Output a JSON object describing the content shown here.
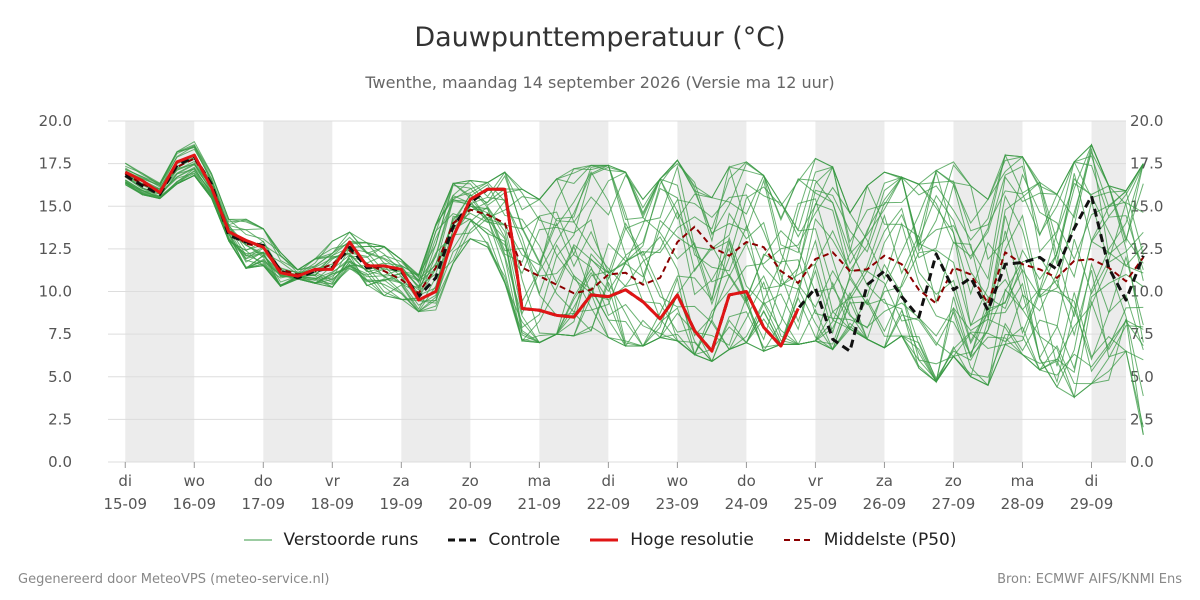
{
  "title": "Dauwpunttemperatuur (°C)",
  "subtitle": "Twenthe, maandag 14 september 2026 (Versie ma 12 uur)",
  "footer": {
    "left": "Gegenereerd door MeteoVPS (meteo-service.nl)",
    "right": "Bron: ECMWF AIFS/KNMI Ens"
  },
  "legend": {
    "members": "Verstoorde runs",
    "control": "Controle",
    "hires": "Hoge resolutie",
    "median": "Middelste (P50)"
  },
  "colors": {
    "members": "#3a9a44",
    "control": "#111111",
    "hires": "#e01515",
    "median": "#8b0000",
    "weekend_band": "#ececec",
    "grid": "#dddddd"
  },
  "chart_data": {
    "type": "line",
    "ylim": [
      0,
      20
    ],
    "yticks": [
      "0.0",
      "2.5",
      "5.0",
      "7.5",
      "10.0",
      "12.5",
      "15.0",
      "17.5",
      "20.0"
    ],
    "x_start_day": -0.25,
    "x_end_day": 14.5,
    "xtick_days": [
      "di",
      "wo",
      "do",
      "vr",
      "za",
      "zo",
      "ma",
      "di",
      "wo",
      "do",
      "vr",
      "za",
      "zo",
      "ma",
      "di"
    ],
    "xtick_dates": [
      "15-09",
      "16-09",
      "17-09",
      "18-09",
      "19-09",
      "20-09",
      "21-09",
      "22-09",
      "23-09",
      "24-09",
      "25-09",
      "26-09",
      "27-09",
      "28-09",
      "29-09"
    ],
    "shaded_days": [
      0,
      2,
      4,
      6,
      8,
      10,
      12,
      14
    ],
    "step_days": 0.25,
    "series": [
      {
        "name": "Controle",
        "role": "control",
        "values": [
          16.8,
          16.2,
          15.7,
          17.4,
          17.9,
          16.3,
          13.3,
          12.9,
          12.7,
          11.2,
          10.8,
          11.2,
          11.4,
          12.6,
          11.4,
          11.5,
          11.2,
          9.7,
          10.8,
          13.8,
          15.2,
          16.0,
          16.0,
          9.0,
          8.9,
          8.6,
          8.5,
          9.8,
          9.7,
          10.1,
          9.4,
          8.4,
          9.8,
          7.7,
          6.5,
          9.8,
          10.0,
          7.9,
          6.8,
          9.0,
          10.2,
          7.2,
          6.5,
          10.4,
          11.2,
          9.7,
          8.5,
          12.2,
          10.1,
          10.8,
          8.9,
          11.6,
          11.7,
          12.0,
          11.3,
          13.7,
          15.6,
          11.4,
          9.5,
          12.1
        ]
      },
      {
        "name": "Hoge resolutie",
        "role": "hires",
        "values": [
          17.0,
          16.5,
          15.8,
          17.6,
          18.0,
          16.1,
          13.5,
          13.0,
          12.6,
          11.1,
          10.9,
          11.3,
          11.3,
          12.9,
          11.5,
          11.5,
          11.3,
          9.5,
          10.0,
          13.2,
          15.4,
          16.0,
          16.0,
          9.0,
          8.9,
          8.6,
          8.5,
          9.8,
          9.7,
          10.1,
          9.4,
          8.4,
          9.8,
          7.7,
          6.5,
          9.8,
          10.0,
          7.9,
          6.8,
          9.0
        ]
      },
      {
        "name": "Middelste (P50)",
        "role": "median",
        "values": [
          16.9,
          16.3,
          15.9,
          17.3,
          17.8,
          16.2,
          13.6,
          12.8,
          12.6,
          11.3,
          11.0,
          11.2,
          11.6,
          12.4,
          11.6,
          11.2,
          10.7,
          9.9,
          11.4,
          14.0,
          14.8,
          14.5,
          14.0,
          11.4,
          10.9,
          10.4,
          9.9,
          10.1,
          11.0,
          11.1,
          10.4,
          10.8,
          12.9,
          13.8,
          12.6,
          12.1,
          12.9,
          12.6,
          11.2,
          10.5,
          11.9,
          12.3,
          11.2,
          11.3,
          12.1,
          11.6,
          10.1,
          9.3,
          11.4,
          11.0,
          9.3,
          12.3,
          11.6,
          11.3,
          10.8,
          11.8,
          11.9,
          11.4,
          10.6,
          12.0
        ]
      }
    ],
    "members": {
      "name": "Verstoorde runs",
      "count": 30,
      "envelope_low": [
        16.2,
        15.2,
        15.4,
        16.0,
        16.3,
        14.5,
        10.4,
        11.2,
        11.4,
        10.2,
        10.2,
        10.4,
        10.0,
        11.0,
        10.2,
        9.2,
        7.6,
        8.7,
        8.6,
        10.0,
        11.6,
        11.2,
        10.5,
        7.1,
        7.0,
        7.5,
        7.4,
        7.7,
        7.3,
        6.8,
        6.8,
        7.3,
        7.1,
        6.3,
        5.9,
        6.6,
        7.0,
        6.5,
        6.9,
        6.9,
        7.1,
        6.6,
        7.8,
        7.2,
        6.7,
        7.4,
        5.5,
        4.7,
        6.2,
        5.0,
        4.5,
        6.9,
        6.3,
        5.4,
        4.4,
        3.8,
        4.6,
        4.8,
        6.5,
        1.6
      ],
      "envelope_high": [
        17.7,
        17.0,
        16.6,
        18.4,
        18.9,
        17.0,
        14.3,
        15.0,
        13.9,
        12.6,
        11.3,
        12.7,
        13.1,
        13.6,
        13.3,
        12.8,
        12.0,
        11.6,
        14.2,
        16.6,
        16.7,
        16.6,
        17.0,
        16.0,
        15.4,
        16.6,
        17.2,
        17.4,
        17.4,
        17.0,
        15.4,
        16.6,
        17.7,
        16.4,
        15.5,
        17.3,
        17.6,
        16.8,
        15.2,
        16.6,
        17.8,
        17.3,
        14.6,
        16.2,
        17.0,
        16.7,
        16.3,
        17.1,
        17.6,
        16.2,
        15.4,
        18.0,
        17.9,
        16.4,
        15.7,
        17.6,
        18.6,
        16.2,
        15.9,
        17.5
      ]
    }
  }
}
